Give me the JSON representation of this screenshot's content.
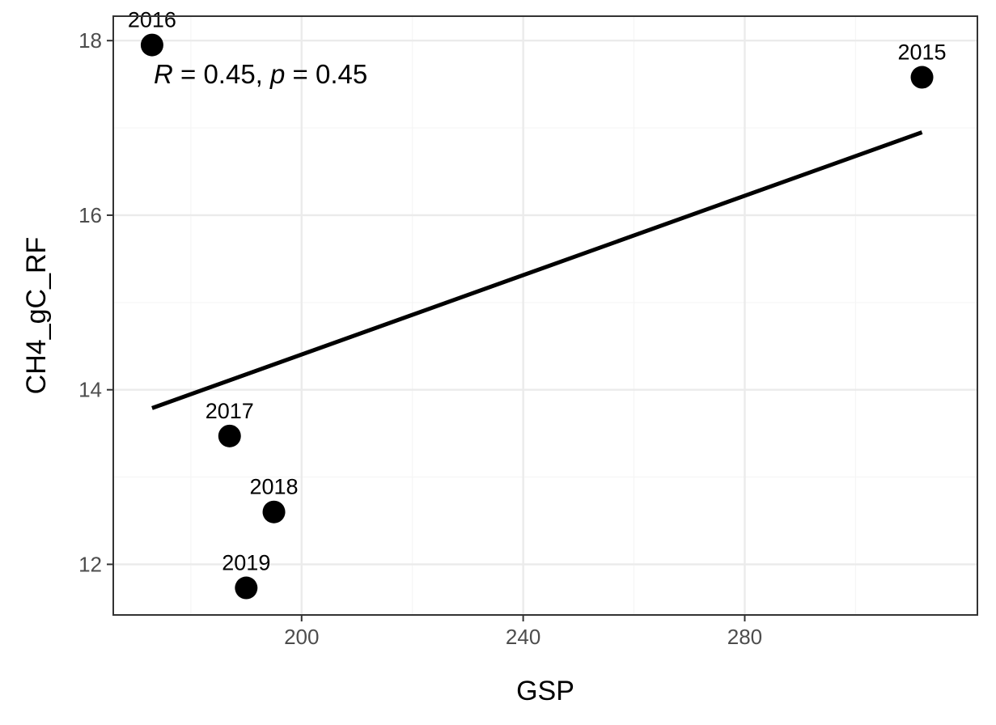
{
  "chart_data": {
    "type": "scatter",
    "xlabel": "GSP",
    "ylabel": "CH4_gC_RF",
    "xlim": [
      166,
      322
    ],
    "ylim": [
      11.42,
      18.28
    ],
    "xticks": [
      200,
      240,
      280
    ],
    "yticks": [
      12,
      14,
      16,
      18
    ],
    "x_minor_ticks": [
      180,
      220,
      260,
      300
    ],
    "y_minor_ticks": [
      13,
      15,
      17
    ],
    "grid": true,
    "points": [
      {
        "label": "2015",
        "x": 312,
        "y": 17.58
      },
      {
        "label": "2016",
        "x": 173,
        "y": 17.95
      },
      {
        "label": "2017",
        "x": 187,
        "y": 13.47
      },
      {
        "label": "2018",
        "x": 195,
        "y": 12.6
      },
      {
        "label": "2019",
        "x": 190,
        "y": 11.73
      }
    ],
    "trend_line": {
      "x": [
        173,
        312
      ],
      "y": [
        13.79,
        16.95
      ]
    },
    "annotation": {
      "r_symbol": "R",
      "r_text": " = 0.45, ",
      "p_symbol": "p",
      "p_text": " = 0.45"
    },
    "colors": {
      "points": "#000000",
      "line": "#000000",
      "grid_major": "#ebebeb",
      "grid_minor": "#f5f5f5",
      "panel_border": "#333333"
    }
  }
}
